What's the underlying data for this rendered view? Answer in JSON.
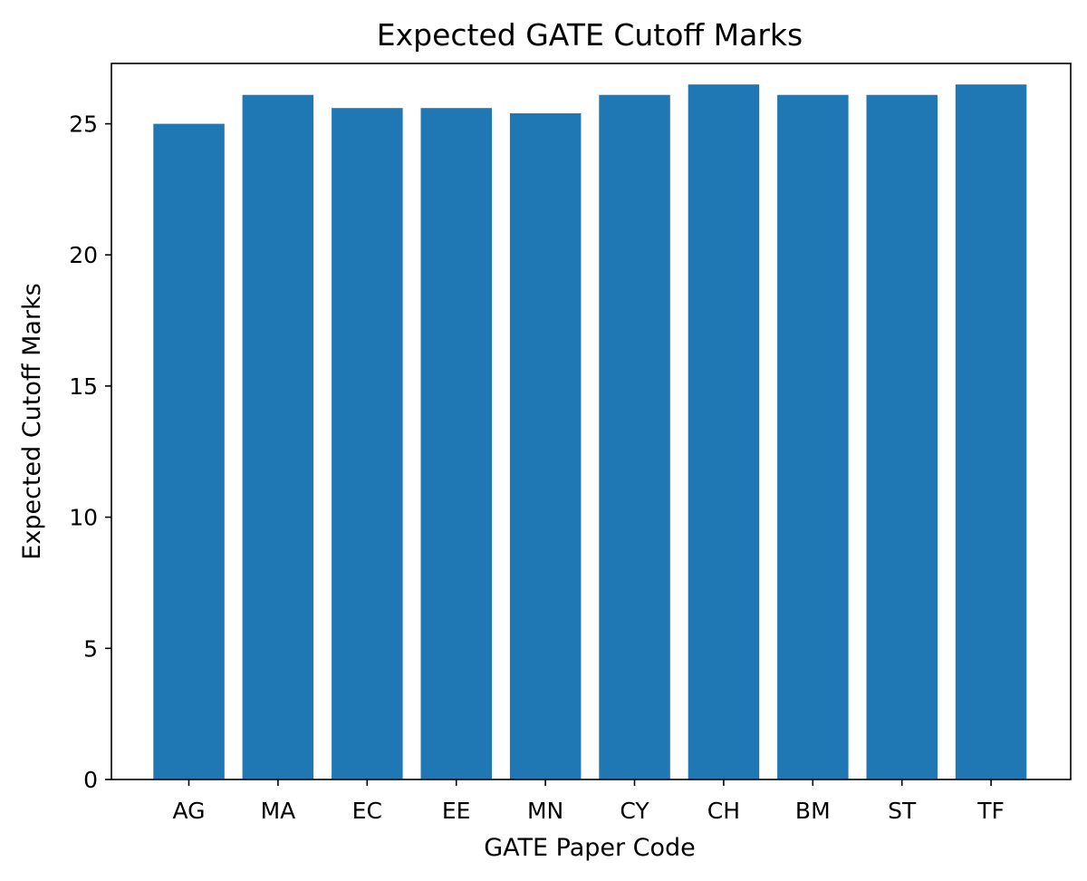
{
  "chart_data": {
    "type": "bar",
    "title": "Expected GATE Cutoff Marks",
    "xlabel": "GATE Paper Code",
    "ylabel": "Expected Cutoff Marks",
    "categories": [
      "AG",
      "MA",
      "EC",
      "EE",
      "MN",
      "CY",
      "CH",
      "BM",
      "ST",
      "TF"
    ],
    "values": [
      25.0,
      26.1,
      25.6,
      25.6,
      25.4,
      26.1,
      26.5,
      26.1,
      26.1,
      26.5
    ],
    "ylim": [
      0,
      27.3
    ],
    "yticks": [
      0,
      5,
      10,
      15,
      20,
      25
    ],
    "bar_color": "#1f77b4",
    "grid": false,
    "legend": "none"
  }
}
